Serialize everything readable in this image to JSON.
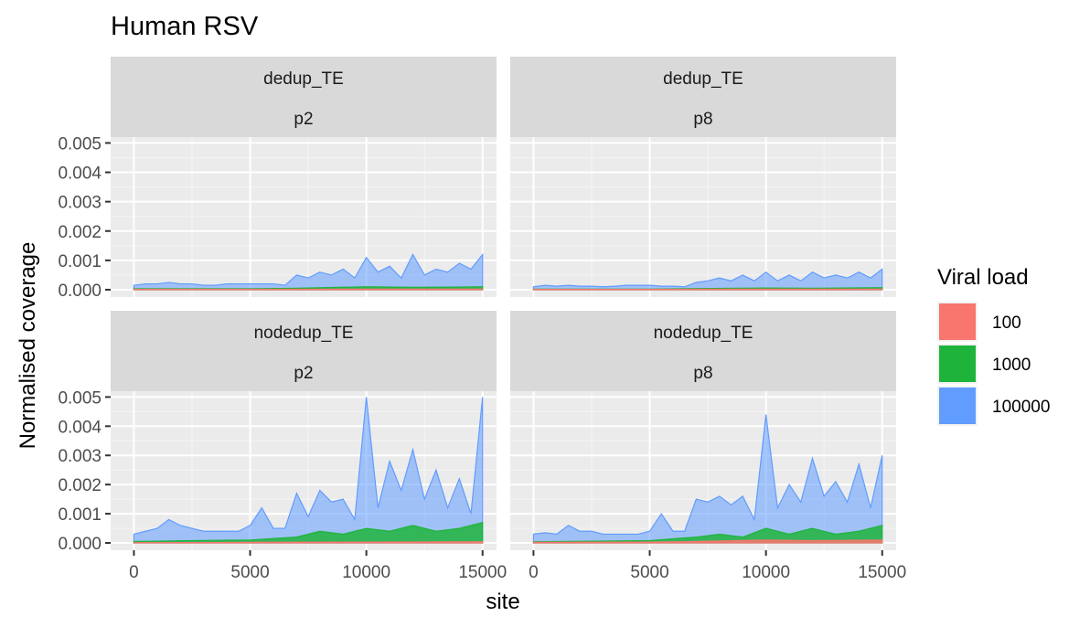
{
  "chart_data": {
    "type": "area",
    "title": "Human RSV",
    "xlabel": "site",
    "ylabel": "Normalised coverage",
    "x_ticks": [
      0,
      5000,
      10000,
      15000
    ],
    "y_ticks": [
      0.0,
      0.001,
      0.002,
      0.003,
      0.004,
      0.005
    ],
    "y_tick_labels": [
      "0.000",
      "0.001",
      "0.002",
      "0.003",
      "0.004",
      "0.005"
    ],
    "x_tick_labels": [
      "0",
      "5000",
      "10000",
      "15000"
    ],
    "xlim": [
      -1000,
      15600
    ],
    "ylim": [
      -0.00025,
      0.0052
    ],
    "grid": true,
    "legend": {
      "title": "Viral load",
      "position": "right",
      "entries": [
        {
          "label": "100",
          "color": "#F8766D"
        },
        {
          "label": "1000",
          "color": "#1EB43C"
        },
        {
          "label": "100000",
          "color": "#619CFF"
        }
      ]
    },
    "panels": [
      {
        "strip_top": "dedup_TE",
        "strip_bottom": "p2",
        "series": [
          {
            "name": "100000",
            "x": [
              0,
              500,
              1000,
              1500,
              2000,
              2500,
              3000,
              3500,
              4000,
              4500,
              5000,
              5500,
              6000,
              6500,
              7000,
              7500,
              8000,
              8500,
              9000,
              9500,
              10000,
              10500,
              11000,
              11500,
              12000,
              12500,
              13000,
              13500,
              14000,
              14500,
              15000
            ],
            "values": [
              0.00015,
              0.0002,
              0.0002,
              0.00025,
              0.0002,
              0.0002,
              0.00015,
              0.00015,
              0.0002,
              0.0002,
              0.0002,
              0.0002,
              0.0002,
              0.00015,
              0.0005,
              0.0004,
              0.0006,
              0.0005,
              0.0007,
              0.0004,
              0.0011,
              0.0006,
              0.0008,
              0.0004,
              0.0012,
              0.0005,
              0.0007,
              0.0006,
              0.0009,
              0.0007,
              0.0012
            ]
          },
          {
            "name": "1000",
            "x": [
              0,
              5000,
              7000,
              10000,
              12000,
              15000
            ],
            "values": [
              3e-05,
              3e-05,
              5e-05,
              0.0001,
              8e-05,
              0.0001
            ]
          },
          {
            "name": "100",
            "x": [
              0,
              5000,
              10000,
              15000
            ],
            "values": [
              1e-05,
              1e-05,
              2e-05,
              2e-05
            ]
          }
        ]
      },
      {
        "strip_top": "dedup_TE",
        "strip_bottom": "p8",
        "series": [
          {
            "name": "100000",
            "x": [
              0,
              500,
              1000,
              1500,
              2000,
              2500,
              3000,
              3500,
              4000,
              4500,
              5000,
              5500,
              6000,
              6500,
              7000,
              7500,
              8000,
              8500,
              9000,
              9500,
              10000,
              10500,
              11000,
              11500,
              12000,
              12500,
              13000,
              13500,
              14000,
              14500,
              15000
            ],
            "values": [
              0.0001,
              0.00015,
              0.00012,
              0.00015,
              0.00012,
              0.00012,
              0.0001,
              0.00012,
              0.00015,
              0.00015,
              0.00015,
              0.00012,
              0.00012,
              0.0001,
              0.00025,
              0.0003,
              0.0004,
              0.0003,
              0.0005,
              0.0003,
              0.0006,
              0.0003,
              0.0005,
              0.0003,
              0.0006,
              0.0004,
              0.0005,
              0.0004,
              0.0006,
              0.0004,
              0.0007
            ]
          },
          {
            "name": "1000",
            "x": [
              0,
              5000,
              7000,
              10000,
              12000,
              15000
            ],
            "values": [
              2e-05,
              2e-05,
              4e-05,
              6e-05,
              5e-05,
              7e-05
            ]
          },
          {
            "name": "100",
            "x": [
              0,
              5000,
              10000,
              15000
            ],
            "values": [
              1e-05,
              1e-05,
              2e-05,
              2e-05
            ]
          }
        ]
      },
      {
        "strip_top": "nodedup_TE",
        "strip_bottom": "p2",
        "series": [
          {
            "name": "100000",
            "x": [
              0,
              500,
              1000,
              1500,
              2000,
              2500,
              3000,
              3500,
              4000,
              4500,
              5000,
              5500,
              6000,
              6500,
              7000,
              7500,
              8000,
              8500,
              9000,
              9500,
              10000,
              10500,
              11000,
              11500,
              12000,
              12500,
              13000,
              13500,
              14000,
              14500,
              15000
            ],
            "values": [
              0.0003,
              0.0004,
              0.0005,
              0.0008,
              0.0006,
              0.0005,
              0.0004,
              0.0004,
              0.0004,
              0.0004,
              0.0006,
              0.0012,
              0.0005,
              0.0005,
              0.0017,
              0.0009,
              0.0018,
              0.0014,
              0.0015,
              0.0008,
              0.005,
              0.0012,
              0.0028,
              0.0018,
              0.0032,
              0.0015,
              0.0025,
              0.0012,
              0.0022,
              0.001,
              0.005
            ]
          },
          {
            "name": "1000",
            "x": [
              0,
              2500,
              5000,
              7000,
              8000,
              9000,
              10000,
              11000,
              12000,
              13000,
              14000,
              15000
            ],
            "values": [
              5e-05,
              8e-05,
              0.0001,
              0.0002,
              0.0004,
              0.0003,
              0.0005,
              0.0004,
              0.0006,
              0.0004,
              0.0005,
              0.0007
            ]
          },
          {
            "name": "100",
            "x": [
              0,
              5000,
              10000,
              15000
            ],
            "values": [
              1e-05,
              2e-05,
              3e-05,
              4e-05
            ]
          }
        ]
      },
      {
        "strip_top": "nodedup_TE",
        "strip_bottom": "p8",
        "series": [
          {
            "name": "100000",
            "x": [
              0,
              500,
              1000,
              1500,
              2000,
              2500,
              3000,
              3500,
              4000,
              4500,
              5000,
              5500,
              6000,
              6500,
              7000,
              7500,
              8000,
              8500,
              9000,
              9500,
              10000,
              10500,
              11000,
              11500,
              12000,
              12500,
              13000,
              13500,
              14000,
              14500,
              15000
            ],
            "values": [
              0.0003,
              0.00035,
              0.0003,
              0.0006,
              0.0004,
              0.0004,
              0.0003,
              0.0003,
              0.0003,
              0.0003,
              0.0004,
              0.001,
              0.0004,
              0.0004,
              0.0015,
              0.0014,
              0.0016,
              0.0013,
              0.0016,
              0.0008,
              0.0044,
              0.0012,
              0.002,
              0.0014,
              0.0029,
              0.0016,
              0.0021,
              0.0014,
              0.0027,
              0.0012,
              0.003
            ]
          },
          {
            "name": "1000",
            "x": [
              0,
              2500,
              5000,
              7000,
              8000,
              9000,
              10000,
              11000,
              12000,
              13000,
              14000,
              15000
            ],
            "values": [
              4e-05,
              6e-05,
              8e-05,
              0.0002,
              0.0003,
              0.0002,
              0.0005,
              0.0003,
              0.0005,
              0.0003,
              0.0004,
              0.0006
            ]
          },
          {
            "name": "100",
            "x": [
              0,
              5000,
              7000,
              10000,
              12000,
              15000
            ],
            "values": [
              2e-05,
              3e-05,
              5e-05,
              0.0001,
              8e-05,
              0.0001
            ]
          }
        ]
      }
    ]
  }
}
